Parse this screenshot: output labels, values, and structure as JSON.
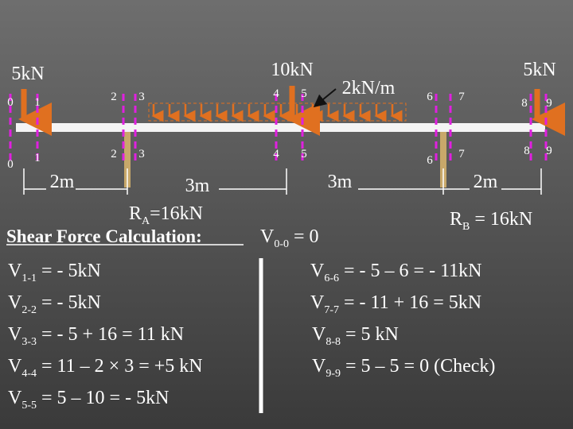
{
  "loads": {
    "left": "5kN",
    "point": "10kN",
    "udl": "2kN/m",
    "right": "5kN"
  },
  "sections": {
    "top": [
      "0",
      "1",
      "2",
      "3",
      "4",
      "5",
      "6",
      "7",
      "8",
      "9"
    ],
    "bottom": [
      "0",
      "1",
      "2",
      "3",
      "4",
      "5",
      "6",
      "7",
      "8",
      "9"
    ]
  },
  "spans": [
    "2m",
    "3m",
    "3m",
    "2m"
  ],
  "reactions": {
    "a": {
      "symbol": "R",
      "sub": "A",
      "rest": "=16kN"
    },
    "b": {
      "symbol": "R",
      "sub": "B",
      "rest": " = 16kN"
    }
  },
  "heading": "Shear Force Calculation:",
  "v00": {
    "symbol": "V",
    "sub": "0-0",
    "rest": " = 0"
  },
  "left_equations": [
    {
      "symbol": "V",
      "sub": "1-1",
      "rest": " = - 5kN"
    },
    {
      "symbol": "V",
      "sub": "2-2",
      "rest": " = - 5kN"
    },
    {
      "symbol": "V",
      "sub": "3-3",
      "rest": " = - 5  + 16 = 11 kN"
    },
    {
      "symbol": "V",
      "sub": "4-4",
      "rest": " = 11 – 2 × 3 = +5 kN"
    },
    {
      "symbol": "V",
      "sub": "5-5",
      "rest": " = 5 – 10 = - 5kN"
    }
  ],
  "right_equations": [
    {
      "symbol": "V",
      "sub": "6-6",
      "rest": " = - 5 – 6 = - 11kN"
    },
    {
      "symbol": "V",
      "sub": "7-7",
      "rest": " = - 11 + 16 = 5kN"
    },
    {
      "symbol": "V",
      "sub": "8-8",
      "rest": " = 5 kN"
    },
    {
      "symbol": "V",
      "sub": "9-9",
      "rest": " = 5 – 5 = 0 (Check)"
    }
  ]
}
